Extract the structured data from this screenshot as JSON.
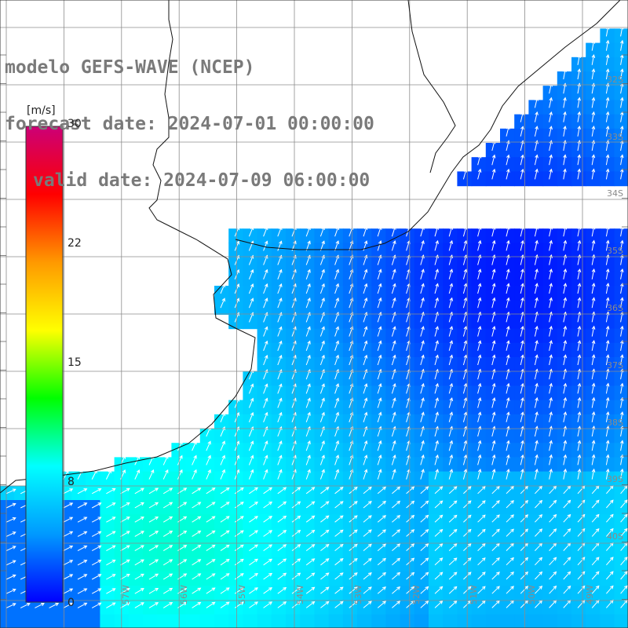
{
  "header": {
    "model": "modelo GEFS-WAVE (NCEP)",
    "forecast": "forecast date: 2024-07-01 00:00:00",
    "valid": "valid date: 2024-07-09 06:00:00"
  },
  "colorbar": {
    "unit": "[m/s]",
    "ticks": [
      "30",
      "22",
      "15",
      "8",
      "0"
    ],
    "range": [
      0,
      30
    ],
    "colors": [
      "#0000ff",
      "#0099ff",
      "#00ffff",
      "#00ff00",
      "#ffff00",
      "#ff9900",
      "#ff0000",
      "#cc0077"
    ]
  },
  "lat_labels": [
    "32S",
    "33S",
    "34S",
    "35S",
    "36S",
    "37S",
    "38S",
    "39S",
    "40S"
  ],
  "lon_labels": [
    "57W",
    "56W",
    "55W",
    "54W",
    "53W",
    "52W",
    "51W",
    "50W",
    "49W"
  ],
  "field": {
    "variable": "wind speed and direction",
    "unit": "m/s",
    "typical_speed_range": [
      4,
      10
    ],
    "prevailing_direction": "from SW toward NE"
  }
}
